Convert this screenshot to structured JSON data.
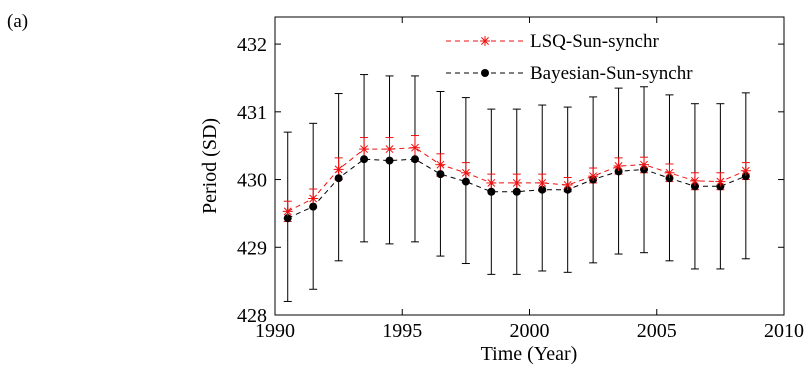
{
  "panel_label": "(a)",
  "chart_data": {
    "type": "line",
    "title": "",
    "xlabel": "Time (Year)",
    "ylabel": "Period (SD)",
    "xlim": [
      1990,
      2010
    ],
    "ylim": [
      428,
      432.4
    ],
    "xticks": [
      1990,
      1995,
      2000,
      2005,
      2010
    ],
    "yticks": [
      428,
      429,
      430,
      431,
      432
    ],
    "grid": false,
    "legend": "top-right",
    "x": [
      1990.5,
      1991.5,
      1992.5,
      1993.5,
      1994.5,
      1995.5,
      1996.5,
      1997.5,
      1998.5,
      1999.5,
      2000.5,
      2001.5,
      2002.5,
      2003.5,
      2004.5,
      2005.5,
      2006.5,
      2007.5,
      2008.5
    ],
    "series": [
      {
        "name": "LSQ-Sun-synchr",
        "color": "#ee1111",
        "marker": "asterisk",
        "line": "dashed",
        "values": [
          429.53,
          429.72,
          430.15,
          430.45,
          430.45,
          430.47,
          430.22,
          430.1,
          429.95,
          429.95,
          429.95,
          429.92,
          430.05,
          430.2,
          430.22,
          430.1,
          429.98,
          429.97,
          430.13
        ],
        "err_lower": [
          429.38,
          429.58,
          430.0,
          430.3,
          430.27,
          430.27,
          430.05,
          429.96,
          429.83,
          429.83,
          429.83,
          429.82,
          429.95,
          430.08,
          430.1,
          429.97,
          429.85,
          429.85,
          430.0
        ],
        "err_upper": [
          429.68,
          429.86,
          430.32,
          430.62,
          430.62,
          430.65,
          430.38,
          430.25,
          430.08,
          430.08,
          430.08,
          430.03,
          430.17,
          430.32,
          430.33,
          430.23,
          430.1,
          430.1,
          430.25
        ]
      },
      {
        "name": "Bayesian-Sun-synchr",
        "color": "#000000",
        "marker": "dot",
        "line": "dashed",
        "values": [
          429.43,
          429.6,
          430.02,
          430.3,
          430.28,
          430.3,
          430.08,
          429.97,
          429.82,
          429.82,
          429.85,
          429.85,
          430.0,
          430.12,
          430.15,
          430.02,
          429.9,
          429.9,
          430.05
        ],
        "err_lower": [
          428.2,
          428.38,
          428.8,
          429.08,
          429.05,
          429.08,
          428.87,
          428.76,
          428.6,
          428.6,
          428.65,
          428.63,
          428.77,
          428.9,
          428.92,
          428.8,
          428.68,
          428.68,
          428.83
        ],
        "err_upper": [
          430.7,
          430.83,
          431.27,
          431.55,
          431.53,
          431.53,
          431.3,
          431.21,
          431.04,
          431.04,
          431.1,
          431.07,
          431.22,
          431.35,
          431.37,
          431.25,
          431.12,
          431.12,
          431.28
        ]
      }
    ]
  }
}
